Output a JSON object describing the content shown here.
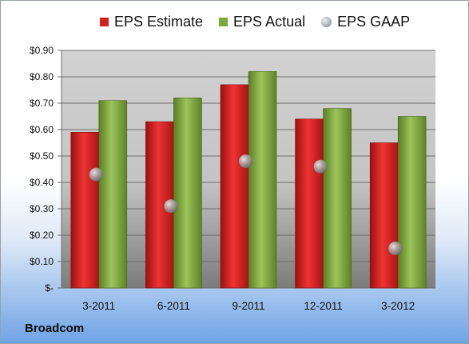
{
  "company": "Broadcom",
  "legend": {
    "estimate": "EPS Estimate",
    "actual": "EPS Actual",
    "gaap": "EPS GAAP"
  },
  "colors": {
    "estimate": "#d42020",
    "actual": "#7ea83c",
    "gaap": "#9aa0a8"
  },
  "chart_data": {
    "type": "bar",
    "categories": [
      "3-2011",
      "6-2011",
      "9-2011",
      "12-2011",
      "3-2012"
    ],
    "series": [
      {
        "name": "EPS Estimate",
        "type": "bar",
        "values": [
          0.59,
          0.63,
          0.77,
          0.64,
          0.55
        ]
      },
      {
        "name": "EPS Actual",
        "type": "bar",
        "values": [
          0.71,
          0.72,
          0.82,
          0.68,
          0.65
        ]
      },
      {
        "name": "EPS GAAP",
        "type": "scatter",
        "values": [
          0.43,
          0.31,
          0.48,
          0.46,
          0.15
        ]
      }
    ],
    "yticks": [
      "$-",
      "$0.10",
      "$0.20",
      "$0.30",
      "$0.40",
      "$0.50",
      "$0.60",
      "$0.70",
      "$0.80",
      "$0.90"
    ],
    "ylim": [
      0,
      0.9
    ],
    "grid": true,
    "legend_position": "top"
  }
}
